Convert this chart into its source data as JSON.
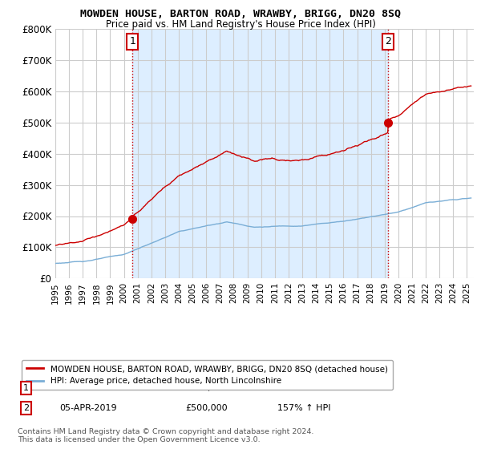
{
  "title": "MOWDEN HOUSE, BARTON ROAD, WRAWBY, BRIGG, DN20 8SQ",
  "subtitle": "Price paid vs. HM Land Registry's House Price Index (HPI)",
  "ylim": [
    0,
    800000
  ],
  "yticks": [
    0,
    100000,
    200000,
    300000,
    400000,
    500000,
    600000,
    700000,
    800000
  ],
  "ytick_labels": [
    "£0",
    "£100K",
    "£200K",
    "£300K",
    "£400K",
    "£500K",
    "£600K",
    "£700K",
    "£800K"
  ],
  "house_color": "#cc0000",
  "hpi_color": "#7aaed6",
  "sale1_x": 2000.62,
  "sale1_y": 190000,
  "sale1_label": "1",
  "sale2_x": 2019.25,
  "sale2_y": 500000,
  "sale2_label": "2",
  "vline_color": "#cc0000",
  "background_color": "#ffffff",
  "shaded_color": "#ddeeff",
  "grid_color": "#cccccc",
  "legend_house": "MOWDEN HOUSE, BARTON ROAD, WRAWBY, BRIGG, DN20 8SQ (detached house)",
  "legend_hpi": "HPI: Average price, detached house, North Lincolnshire",
  "footnote": "Contains HM Land Registry data © Crown copyright and database right 2024.\nThis data is licensed under the Open Government Licence v3.0.",
  "xlim_start": 1995.0,
  "xlim_end": 2025.5
}
